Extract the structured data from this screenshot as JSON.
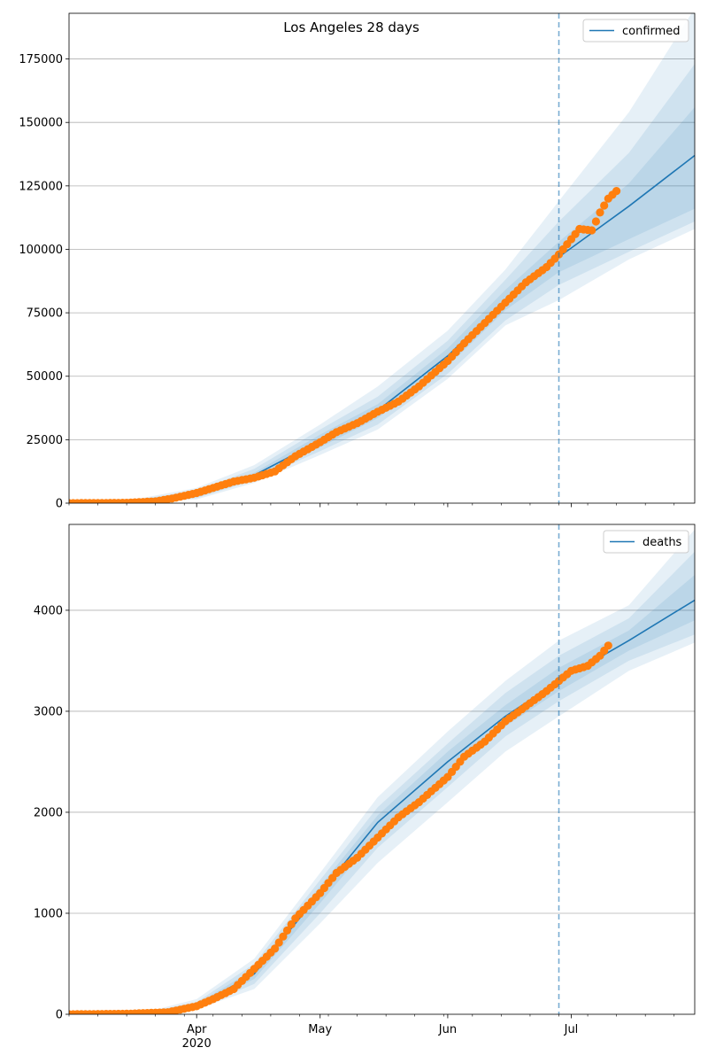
{
  "figure": {
    "title": "Los Angeles 28 days"
  },
  "chart_data": [
    {
      "type": "line",
      "title": "Los Angeles 28 days",
      "xlabel": "",
      "ylabel": "",
      "ylim": [
        0,
        193000
      ],
      "xlim": [
        "2020-03-01",
        "2020-07-31"
      ],
      "yticks": [
        0,
        25000,
        50000,
        75000,
        100000,
        125000,
        150000,
        175000
      ],
      "ytick_labels": [
        "0",
        "25000",
        "50000",
        "75000",
        "100000",
        "125000",
        "150000",
        "175000"
      ],
      "xticks": [],
      "xtick_labels": [],
      "grid": "horizontal",
      "legend": {
        "position": "top-right",
        "entries": [
          "confirmed"
        ]
      },
      "forecast_start": "2020-06-28",
      "series": [
        {
          "name": "confirmed",
          "kind": "model-median-line",
          "color": "#1f77b4",
          "x": [
            "2020-03-01",
            "2020-03-15",
            "2020-04-01",
            "2020-04-15",
            "2020-05-01",
            "2020-05-15",
            "2020-06-01",
            "2020-06-15",
            "2020-06-28",
            "2020-07-15",
            "2020-07-31"
          ],
          "y": [
            0,
            500,
            3000,
            11000,
            24500,
            36500,
            58000,
            80000,
            97000,
            117000,
            137000
          ],
          "bands": [
            {
              "lo": [
                0,
                300,
                1500,
                8000,
                19000,
                29000,
                49000,
                70000,
                80000,
                96000,
                108000
              ],
              "hi": [
                0,
                900,
                6000,
                15000,
                31000,
                46000,
                68000,
                92000,
                119000,
                154000,
                195000
              ]
            },
            {
              "lo": [
                0,
                380,
                2000,
                9000,
                20500,
                31000,
                51000,
                72000,
                86000,
                99000,
                111000
              ],
              "hi": [
                0,
                780,
                5000,
                13500,
                29000,
                42000,
                64000,
                88000,
                111000,
                138000,
                173000
              ]
            },
            {
              "lo": [
                0,
                440,
                2500,
                10000,
                22000,
                33500,
                54000,
                76000,
                91000,
                104000,
                116000
              ],
              "hi": [
                0,
                640,
                4000,
                12000,
                27000,
                39000,
                61000,
                84000,
                103000,
                126000,
                156000
              ]
            }
          ]
        },
        {
          "name": "",
          "kind": "observed-points",
          "color": "#ff7f0e",
          "x": [
            "2020-03-01",
            "2020-03-08",
            "2020-03-15",
            "2020-03-22",
            "2020-03-26",
            "2020-04-01",
            "2020-04-05",
            "2020-04-10",
            "2020-04-15",
            "2020-04-20",
            "2020-04-25",
            "2020-05-01",
            "2020-05-05",
            "2020-05-10",
            "2020-05-15",
            "2020-05-20",
            "2020-05-25",
            "2020-06-01",
            "2020-06-05",
            "2020-06-10",
            "2020-06-15",
            "2020-06-20",
            "2020-06-25",
            "2020-06-28",
            "2020-07-01",
            "2020-07-03",
            "2020-07-06",
            "2020-07-08",
            "2020-07-10",
            "2020-07-12"
          ],
          "y": [
            0,
            50,
            150,
            700,
            1800,
            4000,
            6000,
            8500,
            10000,
            12500,
            18500,
            24000,
            28000,
            31500,
            36000,
            40000,
            46000,
            56000,
            63000,
            71000,
            79000,
            87000,
            93000,
            98000,
            104000,
            108000,
            107500,
            114500,
            120000,
            123000
          ]
        }
      ]
    },
    {
      "type": "line",
      "title": "",
      "xlabel": "",
      "ylabel": "",
      "ylim": [
        0,
        4850
      ],
      "xlim": [
        "2020-03-01",
        "2020-07-31"
      ],
      "yticks": [
        0,
        1000,
        2000,
        3000,
        4000
      ],
      "ytick_labels": [
        "0",
        "1000",
        "2000",
        "3000",
        "4000"
      ],
      "xticks": [
        "2020-04-01",
        "2020-05-01",
        "2020-06-01",
        "2020-07-01"
      ],
      "xtick_labels": [
        "Apr\n2020",
        "May",
        "Jun",
        "Jul"
      ],
      "grid": "horizontal",
      "legend": {
        "position": "top-right",
        "entries": [
          "deaths"
        ]
      },
      "forecast_start": "2020-06-28",
      "series": [
        {
          "name": "deaths",
          "kind": "model-median-line",
          "color": "#1f77b4",
          "x": [
            "2020-03-01",
            "2020-03-20",
            "2020-04-01",
            "2020-04-15",
            "2020-05-01",
            "2020-05-15",
            "2020-06-01",
            "2020-06-15",
            "2020-06-28",
            "2020-07-15",
            "2020-07-31"
          ],
          "y": [
            0,
            10,
            80,
            400,
            1200,
            1900,
            2500,
            2950,
            3300,
            3700,
            4100
          ],
          "bands": [
            {
              "lo": [
                0,
                0,
                50,
                250,
                900,
                1500,
                2100,
                2600,
                2950,
                3400,
                3680
              ],
              "hi": [
                0,
                25,
                150,
                550,
                1400,
                2150,
                2800,
                3300,
                3700,
                4050,
                4800
              ]
            },
            {
              "lo": [
                0,
                3,
                60,
                300,
                1000,
                1650,
                2250,
                2750,
                3100,
                3500,
                3760
              ],
              "hi": [
                0,
                18,
                120,
                500,
                1330,
                2050,
                2680,
                3180,
                3550,
                3920,
                4580
              ]
            },
            {
              "lo": [
                0,
                6,
                70,
                350,
                1100,
                1780,
                2380,
                2850,
                3200,
                3600,
                3900
              ],
              "hi": [
                0,
                14,
                100,
                450,
                1270,
                1970,
                2600,
                3060,
                3430,
                3800,
                4350
              ]
            }
          ]
        },
        {
          "name": "",
          "kind": "observed-points",
          "color": "#ff7f0e",
          "x": [
            "2020-03-01",
            "2020-03-15",
            "2020-03-25",
            "2020-04-01",
            "2020-04-05",
            "2020-04-10",
            "2020-04-15",
            "2020-04-20",
            "2020-04-25",
            "2020-05-01",
            "2020-05-05",
            "2020-05-10",
            "2020-05-15",
            "2020-05-20",
            "2020-05-25",
            "2020-06-01",
            "2020-06-05",
            "2020-06-10",
            "2020-06-15",
            "2020-06-20",
            "2020-06-25",
            "2020-06-28",
            "2020-07-01",
            "2020-07-05",
            "2020-07-08",
            "2020-07-10"
          ],
          "y": [
            0,
            5,
            20,
            80,
            150,
            250,
            450,
            650,
            950,
            1200,
            1400,
            1550,
            1750,
            1950,
            2100,
            2350,
            2550,
            2700,
            2900,
            3050,
            3200,
            3300,
            3400,
            3450,
            3550,
            3650
          ]
        }
      ]
    }
  ]
}
